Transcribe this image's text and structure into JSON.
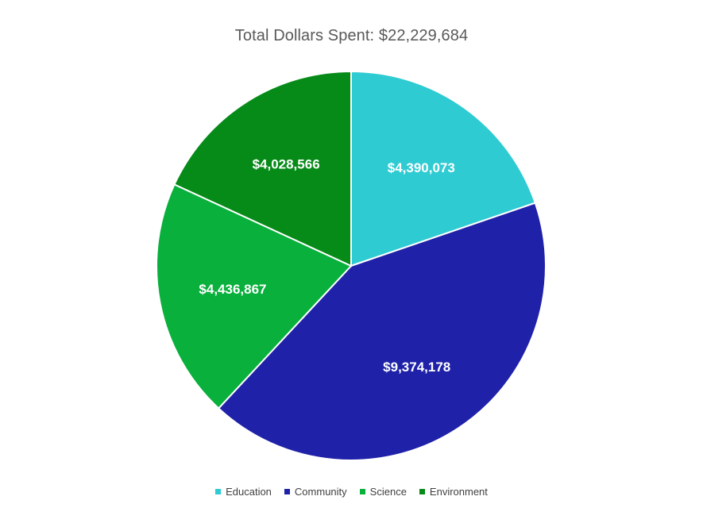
{
  "chart_data": {
    "type": "pie",
    "title": "Total Dollars Spent: $22,229,684",
    "categories": [
      "Education",
      "Community",
      "Science",
      "Environment"
    ],
    "values": [
      4390073,
      9374178,
      4436867,
      4028566
    ],
    "data_labels": [
      "$4,390,073",
      "$9,374,178",
      "$4,436,867",
      "$4,028,566"
    ],
    "colors": [
      "#2ecbd3",
      "#1f22a8",
      "#09b03c",
      "#068a18"
    ],
    "start_angle_deg": 0,
    "direction": "clockwise",
    "legend_position": "bottom"
  }
}
